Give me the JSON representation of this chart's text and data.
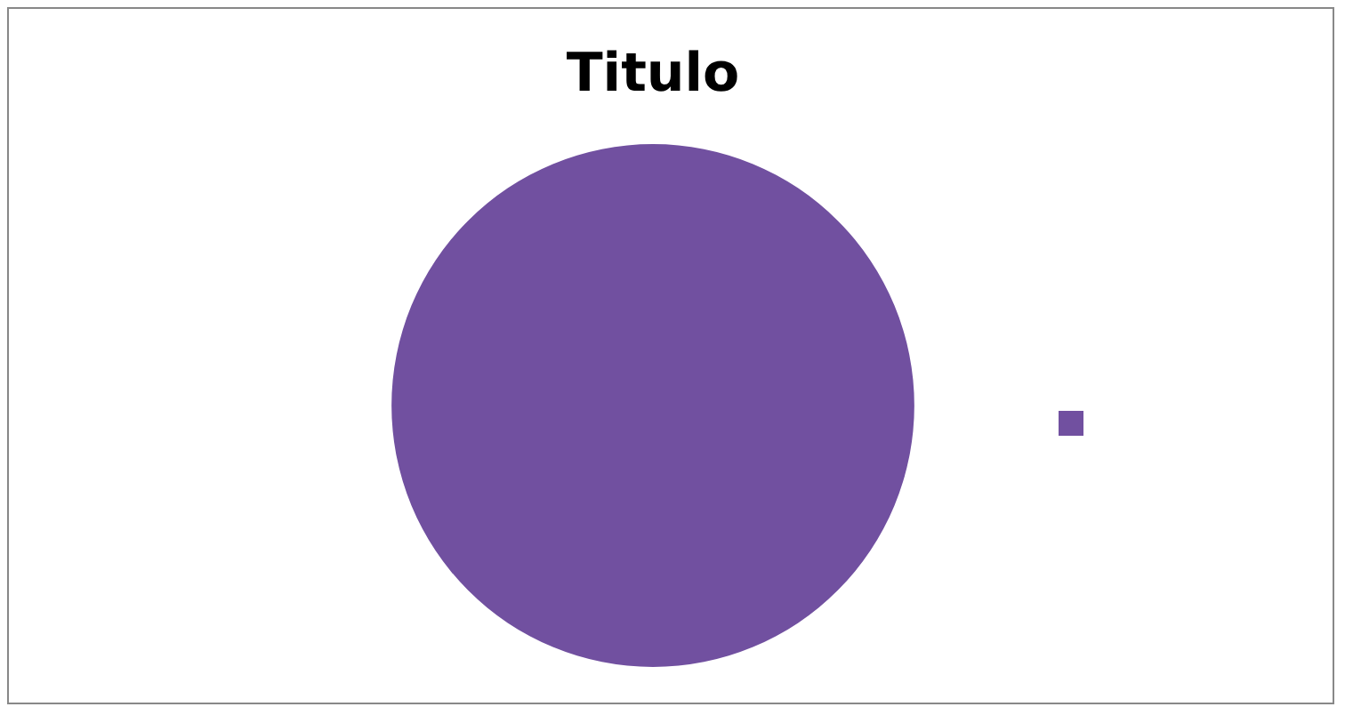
{
  "chart_data": {
    "type": "pie",
    "title": "Titulo",
    "categories": [
      null
    ],
    "values": [
      100
    ],
    "colors": [
      "#7150a0"
    ]
  }
}
